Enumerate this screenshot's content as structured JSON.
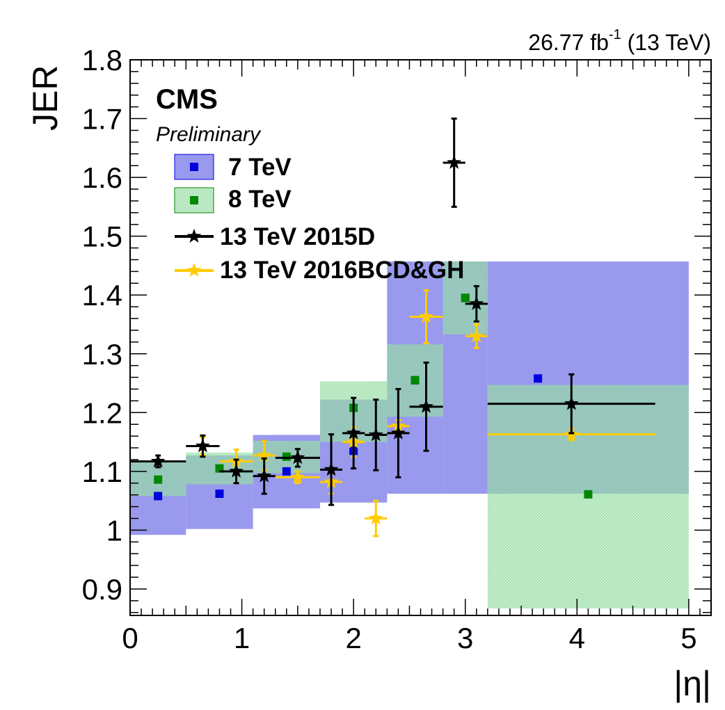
{
  "header": {
    "lumi_prefix": "26.77 fb",
    "lumi_exp": "-1",
    "lumi_suffix": " (13 TeV)"
  },
  "labels": {
    "experiment": "CMS",
    "status": "Preliminary"
  },
  "chart_data": {
    "type": "scatter",
    "xlabel": "|η|",
    "ylabel": "JER",
    "xlim": [
      0,
      5.2
    ],
    "ylim": [
      0.855,
      1.8
    ],
    "xticks": [
      0,
      1,
      2,
      3,
      4,
      5
    ],
    "yticks": [
      0.9,
      1,
      1.1,
      1.2,
      1.3,
      1.4,
      1.5,
      1.6,
      1.7,
      1.8
    ],
    "ytick_labels": [
      "0.9",
      "1",
      "1.1",
      "1.2",
      "1.3",
      "1.4",
      "1.5",
      "1.6",
      "1.7",
      "1.8"
    ],
    "grid": false,
    "legend_position": "top-left",
    "legend": [
      "7 TeV",
      "8 TeV",
      "13 TeV 2015D",
      "13 TeV 2016BCD&GH"
    ],
    "colors": {
      "tev7_band": "#9999ee",
      "tev7_marker": "#0000dd",
      "tev8_band": "#a8e6a8",
      "tev8_marker": "#008800",
      "tev13_2015": "#000000",
      "tev13_2016": "#ffcc00"
    },
    "series": [
      {
        "name": "7 TeV",
        "kind": "band",
        "bins": [
          {
            "xlo": 0.0,
            "xhi": 0.5,
            "ylo": 0.992,
            "yhi": 1.117,
            "marker": {
              "x": 0.25,
              "y": 1.058
            }
          },
          {
            "xlo": 0.5,
            "xhi": 1.1,
            "ylo": 1.002,
            "yhi": 1.127,
            "marker": {
              "x": 0.8,
              "y": 1.062
            }
          },
          {
            "xlo": 1.1,
            "xhi": 1.7,
            "ylo": 1.037,
            "yhi": 1.162,
            "marker": {
              "x": 1.4,
              "y": 1.1
            }
          },
          {
            "xlo": 1.7,
            "xhi": 2.3,
            "ylo": 1.047,
            "yhi": 1.222,
            "marker": {
              "x": 2.0,
              "y": 1.135
            }
          },
          {
            "xlo": 2.3,
            "xhi": 2.8,
            "ylo": 1.062,
            "yhi": 1.457,
            "marker": {
              "x": 2.55,
              "y": 1.255
            }
          },
          {
            "xlo": 2.8,
            "xhi": 3.2,
            "ylo": 1.062,
            "yhi": 1.457,
            "marker": {
              "x": 3.0,
              "y": 1.395
            }
          },
          {
            "xlo": 3.2,
            "xhi": 5.0,
            "ylo": 1.062,
            "yhi": 1.457,
            "marker": {
              "x": 3.65,
              "y": 1.258
            }
          }
        ]
      },
      {
        "name": "8 TeV",
        "kind": "band",
        "bins": [
          {
            "xlo": 0.0,
            "xhi": 0.5,
            "ylo": 1.058,
            "yhi": 1.117,
            "marker": {
              "x": 0.25,
              "y": 1.086
            }
          },
          {
            "xlo": 0.5,
            "xhi": 1.1,
            "ylo": 1.078,
            "yhi": 1.132,
            "marker": {
              "x": 0.8,
              "y": 1.105
            }
          },
          {
            "xlo": 1.1,
            "xhi": 1.7,
            "ylo": 1.097,
            "yhi": 1.152,
            "marker": {
              "x": 1.4,
              "y": 1.125
            }
          },
          {
            "xlo": 1.7,
            "xhi": 2.3,
            "ylo": 1.15,
            "yhi": 1.253,
            "marker": {
              "x": 2.0,
              "y": 1.208
            }
          },
          {
            "xlo": 2.3,
            "xhi": 2.8,
            "ylo": 1.193,
            "yhi": 1.316,
            "marker": {
              "x": 2.55,
              "y": 1.255
            }
          },
          {
            "xlo": 2.8,
            "xhi": 3.2,
            "ylo": 1.333,
            "yhi": 1.457,
            "marker": {
              "x": 3.0,
              "y": 1.395
            }
          },
          {
            "xlo": 3.2,
            "xhi": 5.0,
            "ylo": 0.867,
            "yhi": 1.247,
            "marker": {
              "x": 4.1,
              "y": 1.061
            }
          }
        ]
      },
      {
        "name": "13 TeV 2015D",
        "kind": "errorbars",
        "points": [
          {
            "x": 0.25,
            "y": 1.117,
            "xerr": 0.25,
            "yerr": 0.01
          },
          {
            "x": 0.65,
            "y": 1.143,
            "xerr": 0.15,
            "yerr": 0.018
          },
          {
            "x": 0.95,
            "y": 1.1,
            "xerr": 0.15,
            "yerr": 0.02
          },
          {
            "x": 1.2,
            "y": 1.092,
            "xerr": 0.1,
            "yerr": 0.03
          },
          {
            "x": 1.5,
            "y": 1.123,
            "xerr": 0.2,
            "yerr": 0.015
          },
          {
            "x": 1.8,
            "y": 1.103,
            "xerr": 0.1,
            "yerr": 0.06
          },
          {
            "x": 2.0,
            "y": 1.165,
            "xerr": 0.1,
            "yerr": 0.06
          },
          {
            "x": 2.2,
            "y": 1.162,
            "xerr": 0.1,
            "yerr": 0.06
          },
          {
            "x": 2.4,
            "y": 1.165,
            "xerr": 0.1,
            "yerr": 0.075
          },
          {
            "x": 2.65,
            "y": 1.21,
            "xerr": 0.15,
            "yerr": 0.075
          },
          {
            "x": 2.9,
            "y": 1.625,
            "xerr": 0.1,
            "yerr": 0.075
          },
          {
            "x": 3.1,
            "y": 1.385,
            "xerr": 0.1,
            "yerr": 0.03
          },
          {
            "x": 3.95,
            "y": 1.215,
            "xerr": 0.75,
            "yerr": 0.05
          }
        ]
      },
      {
        "name": "13 TeV 2016BCD&GH",
        "kind": "errorbars",
        "points": [
          {
            "x": 0.65,
            "y": 1.143,
            "xerr": 0.15,
            "yerr": 0.015
          },
          {
            "x": 0.95,
            "y": 1.117,
            "xerr": 0.15,
            "yerr": 0.02
          },
          {
            "x": 1.2,
            "y": 1.127,
            "xerr": 0.1,
            "yerr": 0.025
          },
          {
            "x": 1.5,
            "y": 1.09,
            "xerr": 0.2,
            "yerr": 0.01
          },
          {
            "x": 1.8,
            "y": 1.082,
            "xerr": 0.1,
            "yerr": 0.02
          },
          {
            "x": 2.0,
            "y": 1.15,
            "xerr": 0.1,
            "yerr": 0.025
          },
          {
            "x": 2.2,
            "y": 1.02,
            "xerr": 0.1,
            "yerr": 0.03
          },
          {
            "x": 2.4,
            "y": 1.177,
            "xerr": 0.1,
            "yerr": 0.01
          },
          {
            "x": 2.65,
            "y": 1.363,
            "xerr": 0.15,
            "yerr": 0.045
          },
          {
            "x": 3.1,
            "y": 1.33,
            "xerr": 0.1,
            "yerr": 0.02
          },
          {
            "x": 3.95,
            "y": 1.163,
            "xerr": 0.75,
            "yerr": 0.01
          }
        ]
      }
    ]
  }
}
